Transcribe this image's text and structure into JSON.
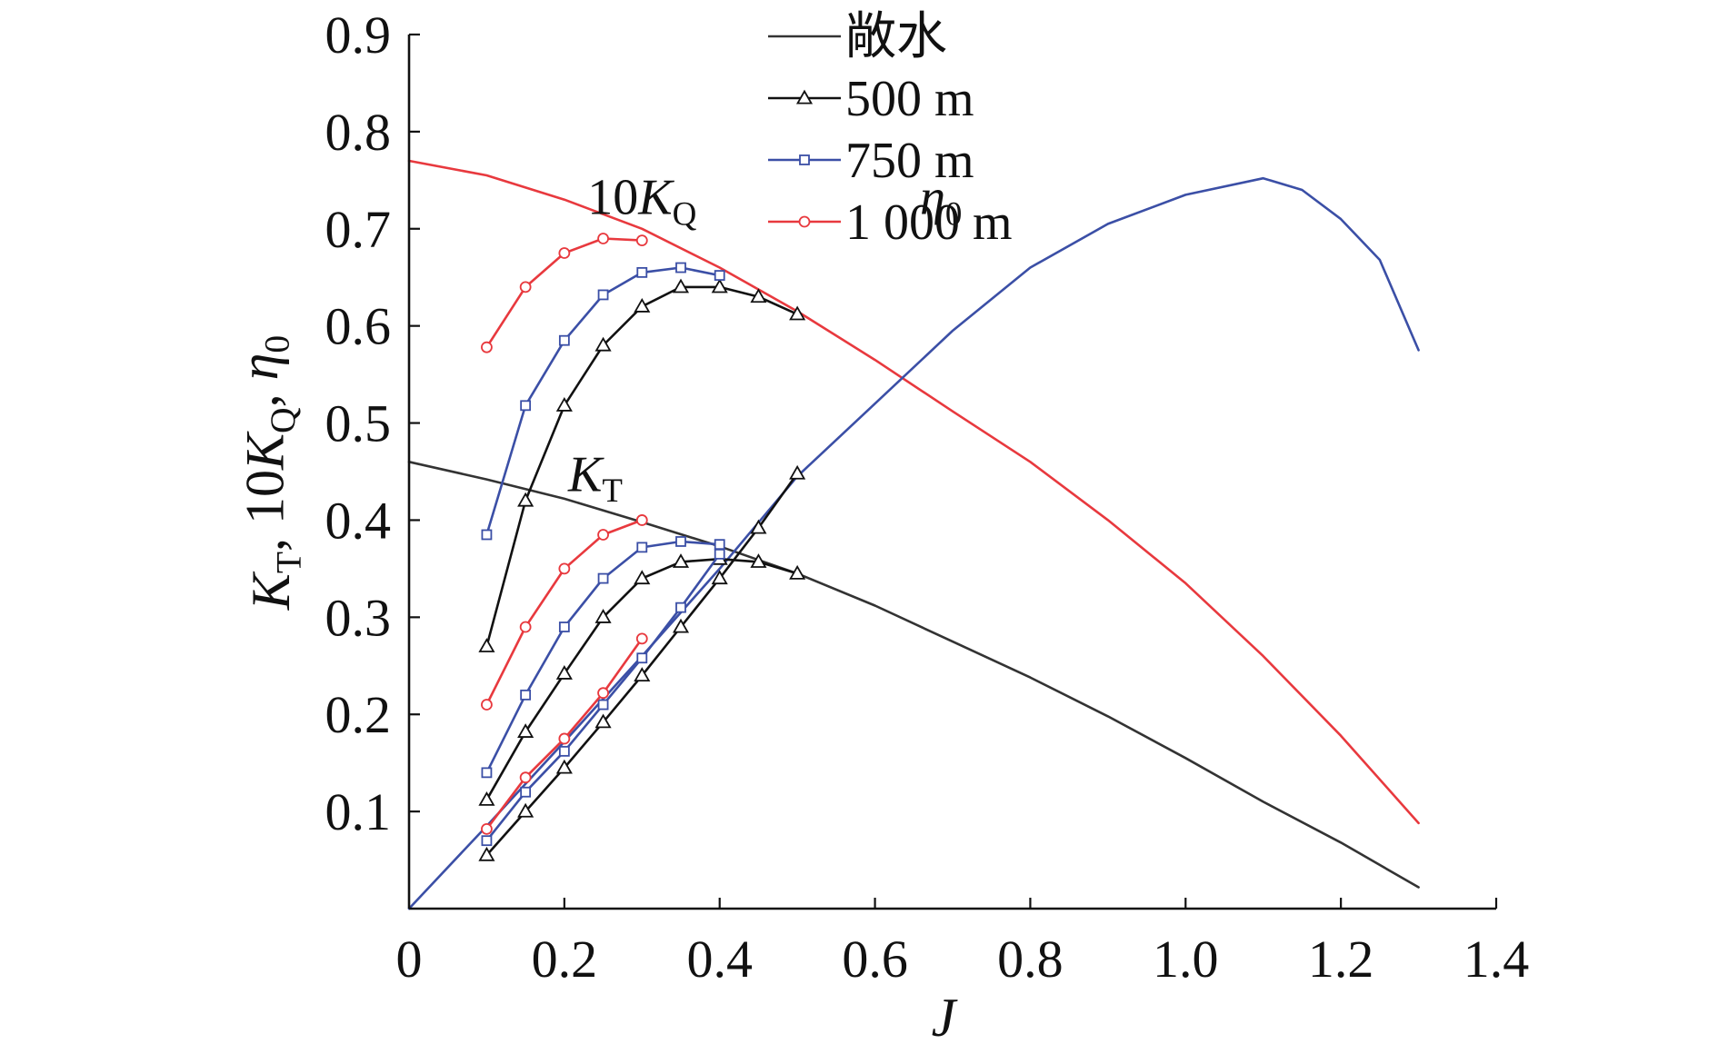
{
  "chart_data": {
    "type": "line",
    "xlabel": "J",
    "ylabel": {
      "parts": [
        {
          "text": "K",
          "italic": true
        },
        {
          "text": "T",
          "sub": true
        },
        {
          "text": ", 10",
          "italic": false
        },
        {
          "text": "K",
          "italic": true
        },
        {
          "text": "Q",
          "sub": true
        },
        {
          "text": ", ",
          "italic": false
        },
        {
          "text": "η",
          "italic": true
        },
        {
          "text": "0",
          "sub": true
        }
      ]
    },
    "xlim": [
      0,
      1.4
    ],
    "ylim": [
      0,
      0.9
    ],
    "xticks": [
      {
        "value": 0,
        "label": "0"
      },
      {
        "value": 0.2,
        "label": "0.2"
      },
      {
        "value": 0.4,
        "label": "0.4"
      },
      {
        "value": 0.6,
        "label": "0.6"
      },
      {
        "value": 0.8,
        "label": "0.8"
      },
      {
        "value": 1.0,
        "label": "1.0"
      },
      {
        "value": 1.2,
        "label": "1.2"
      },
      {
        "value": 1.4,
        "label": "1.4"
      }
    ],
    "yticks": [
      {
        "value": 0.1,
        "label": "0.1"
      },
      {
        "value": 0.2,
        "label": "0.2"
      },
      {
        "value": 0.3,
        "label": "0.3"
      },
      {
        "value": 0.4,
        "label": "0.4"
      },
      {
        "value": 0.5,
        "label": "0.5"
      },
      {
        "value": 0.6,
        "label": "0.6"
      },
      {
        "value": 0.7,
        "label": "0.7"
      },
      {
        "value": 0.8,
        "label": "0.8"
      },
      {
        "value": 0.9,
        "label": "0.9"
      }
    ],
    "grid": false,
    "legend_position": "top-center",
    "legend": [
      {
        "label": "敞水",
        "color": "#333333",
        "marker": "none"
      },
      {
        "label": "500 m",
        "color": "#111111",
        "marker": "triangle"
      },
      {
        "label": "750 m",
        "color": "#3b4fa6",
        "marker": "square"
      },
      {
        "label": "1 000 m",
        "color": "#e8393e",
        "marker": "circle"
      }
    ],
    "annotations": [
      {
        "id": "kq",
        "x": 0.3,
        "y": 0.715,
        "parts": [
          {
            "text": "10"
          },
          {
            "text": "K",
            "italic": true
          },
          {
            "text": "Q",
            "sub": true
          }
        ]
      },
      {
        "id": "kt",
        "x": 0.24,
        "y": 0.43,
        "parts": [
          {
            "text": "K",
            "italic": true
          },
          {
            "text": "T",
            "sub": true
          }
        ]
      },
      {
        "id": "eta",
        "x": 0.685,
        "y": 0.715,
        "parts": [
          {
            "text": "η",
            "italic": true
          },
          {
            "text": "0",
            "sub": true
          }
        ]
      }
    ],
    "series": [
      {
        "name": "敞水 10KQ",
        "group": "open",
        "color": "#e8393e",
        "marker": "none",
        "x": [
          0,
          0.1,
          0.2,
          0.3,
          0.4,
          0.5,
          0.6,
          0.7,
          0.8,
          0.9,
          1.0,
          1.1,
          1.2,
          1.3
        ],
        "y": [
          0.77,
          0.755,
          0.73,
          0.7,
          0.66,
          0.615,
          0.565,
          0.512,
          0.46,
          0.4,
          0.335,
          0.26,
          0.178,
          0.088
        ]
      },
      {
        "name": "敞水 KT",
        "group": "open",
        "color": "#333333",
        "marker": "none",
        "x": [
          0,
          0.1,
          0.2,
          0.3,
          0.4,
          0.5,
          0.6,
          0.7,
          0.8,
          0.9,
          1.0,
          1.1,
          1.2,
          1.3
        ],
        "y": [
          0.46,
          0.442,
          0.422,
          0.398,
          0.373,
          0.345,
          0.312,
          0.275,
          0.238,
          0.198,
          0.155,
          0.11,
          0.068,
          0.022
        ]
      },
      {
        "name": "敞水 η0",
        "group": "open",
        "color": "#3b4fa6",
        "marker": "none",
        "x": [
          0,
          0.1,
          0.2,
          0.3,
          0.4,
          0.5,
          0.6,
          0.7,
          0.8,
          0.9,
          1.0,
          1.1,
          1.15,
          1.2,
          1.25,
          1.3
        ],
        "y": [
          0.0,
          0.085,
          0.172,
          0.26,
          0.35,
          0.445,
          0.52,
          0.595,
          0.66,
          0.705,
          0.735,
          0.752,
          0.74,
          0.71,
          0.668,
          0.575
        ]
      },
      {
        "name": "500 m 10KQ",
        "group": "500",
        "color": "#111111",
        "marker": "triangle",
        "x": [
          0.1,
          0.15,
          0.2,
          0.25,
          0.3,
          0.35,
          0.4,
          0.45,
          0.5
        ],
        "y": [
          0.27,
          0.42,
          0.518,
          0.58,
          0.62,
          0.64,
          0.64,
          0.63,
          0.612
        ]
      },
      {
        "name": "500 m KT",
        "group": "500",
        "color": "#111111",
        "marker": "triangle",
        "x": [
          0.1,
          0.15,
          0.2,
          0.25,
          0.3,
          0.35,
          0.4,
          0.45,
          0.5
        ],
        "y": [
          0.112,
          0.182,
          0.242,
          0.3,
          0.34,
          0.357,
          0.36,
          0.357,
          0.345
        ]
      },
      {
        "name": "500 m η0",
        "group": "500",
        "color": "#111111",
        "marker": "triangle",
        "x": [
          0.1,
          0.15,
          0.2,
          0.25,
          0.3,
          0.35,
          0.4,
          0.45,
          0.5
        ],
        "y": [
          0.055,
          0.1,
          0.145,
          0.192,
          0.24,
          0.29,
          0.34,
          0.392,
          0.448
        ]
      },
      {
        "name": "750 m 10KQ",
        "group": "750",
        "color": "#3b4fa6",
        "marker": "square",
        "x": [
          0.1,
          0.15,
          0.2,
          0.25,
          0.3,
          0.35,
          0.4
        ],
        "y": [
          0.385,
          0.518,
          0.585,
          0.632,
          0.655,
          0.66,
          0.652
        ]
      },
      {
        "name": "750 m KT",
        "group": "750",
        "color": "#3b4fa6",
        "marker": "square",
        "x": [
          0.1,
          0.15,
          0.2,
          0.25,
          0.3,
          0.35,
          0.4
        ],
        "y": [
          0.14,
          0.22,
          0.29,
          0.34,
          0.372,
          0.378,
          0.375
        ]
      },
      {
        "name": "750 m η0",
        "group": "750",
        "color": "#3b4fa6",
        "marker": "square",
        "x": [
          0.1,
          0.15,
          0.2,
          0.25,
          0.3,
          0.35,
          0.4
        ],
        "y": [
          0.07,
          0.12,
          0.162,
          0.21,
          0.258,
          0.31,
          0.365
        ]
      },
      {
        "name": "1 000 m 10KQ",
        "group": "1000",
        "color": "#e8393e",
        "marker": "circle",
        "x": [
          0.1,
          0.15,
          0.2,
          0.25,
          0.3
        ],
        "y": [
          0.578,
          0.64,
          0.675,
          0.69,
          0.688
        ]
      },
      {
        "name": "1 000 m KT",
        "group": "1000",
        "color": "#e8393e",
        "marker": "circle",
        "x": [
          0.1,
          0.15,
          0.2,
          0.25,
          0.3
        ],
        "y": [
          0.21,
          0.29,
          0.35,
          0.385,
          0.4
        ]
      },
      {
        "name": "1 000 m η0",
        "group": "1000",
        "color": "#e8393e",
        "marker": "circle",
        "x": [
          0.1,
          0.15,
          0.2,
          0.25,
          0.3
        ],
        "y": [
          0.082,
          0.135,
          0.175,
          0.222,
          0.278
        ]
      }
    ]
  }
}
